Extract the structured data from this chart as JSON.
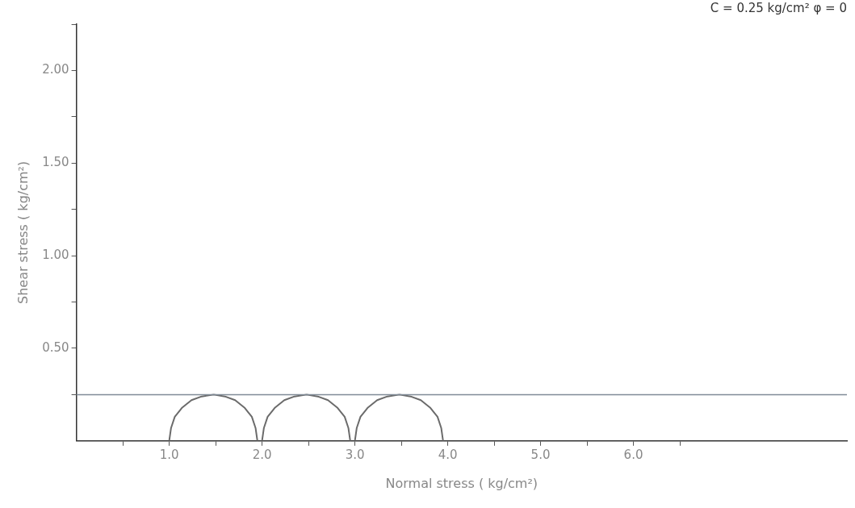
{
  "chart_data": {
    "type": "line",
    "xlabel": "Normal stress ( kg/cm²)",
    "ylabel": "Shear stress ( kg/cm²)",
    "annotations": [
      "C = 0.25 kg/cm² φ = 0"
    ],
    "xlim": [
      0,
      8.3
    ],
    "ylim": [
      0,
      2.25
    ],
    "xticks": [
      {
        "value": 0.5,
        "label": null
      },
      {
        "value": 1,
        "label": "1.0"
      },
      {
        "value": 1.5,
        "label": null
      },
      {
        "value": 2,
        "label": "2.0"
      },
      {
        "value": 2.5,
        "label": null
      },
      {
        "value": 3,
        "label": "3.0"
      },
      {
        "value": 3.5,
        "label": null
      },
      {
        "value": 4,
        "label": "4.0"
      },
      {
        "value": 4.5,
        "label": null
      },
      {
        "value": 5,
        "label": "5.0"
      },
      {
        "value": 5.5,
        "label": null
      },
      {
        "value": 6,
        "label": "6.0"
      },
      {
        "value": 6.5,
        "label": null
      }
    ],
    "yticks": [
      {
        "value": 0.25,
        "label": null
      },
      {
        "value": 0.5,
        "label": "0.50"
      },
      {
        "value": 0.75,
        "label": null
      },
      {
        "value": 1,
        "label": "1.00"
      },
      {
        "value": 1.25,
        "label": null
      },
      {
        "value": 1.5,
        "label": "1.50"
      },
      {
        "value": 1.75,
        "label": null
      },
      {
        "value": 2,
        "label": "2.00"
      },
      {
        "value": 2.25,
        "label": null
      }
    ],
    "grid": false,
    "legend": false,
    "marker": "none",
    "line_style": "solid",
    "ref_lines": [
      {
        "axis": "y",
        "value": 0.25,
        "label": null,
        "color": "#7f8a96"
      }
    ],
    "series": [
      {
        "color": "#6b6b6b",
        "x": [
          1.0,
          1.02,
          1.06,
          1.14,
          1.24,
          1.35,
          1.48,
          1.6,
          1.71,
          1.81,
          1.89,
          1.93,
          1.95
        ],
        "values": [
          0,
          0.07,
          0.13,
          0.18,
          0.22,
          0.24,
          0.25,
          0.24,
          0.22,
          0.18,
          0.13,
          0.07,
          0
        ]
      },
      {
        "color": "#6b6b6b",
        "x": [
          2.0,
          2.02,
          2.06,
          2.14,
          2.24,
          2.35,
          2.48,
          2.6,
          2.71,
          2.81,
          2.89,
          2.93,
          2.95
        ],
        "values": [
          0,
          0.07,
          0.13,
          0.18,
          0.22,
          0.24,
          0.25,
          0.24,
          0.22,
          0.18,
          0.13,
          0.07,
          0
        ]
      },
      {
        "color": "#6b6b6b",
        "x": [
          3.0,
          3.02,
          3.06,
          3.14,
          3.24,
          3.35,
          3.48,
          3.6,
          3.71,
          3.81,
          3.89,
          3.93,
          3.95
        ],
        "values": [
          0,
          0.07,
          0.13,
          0.18,
          0.22,
          0.24,
          0.25,
          0.24,
          0.22,
          0.18,
          0.13,
          0.07,
          0
        ]
      }
    ]
  }
}
